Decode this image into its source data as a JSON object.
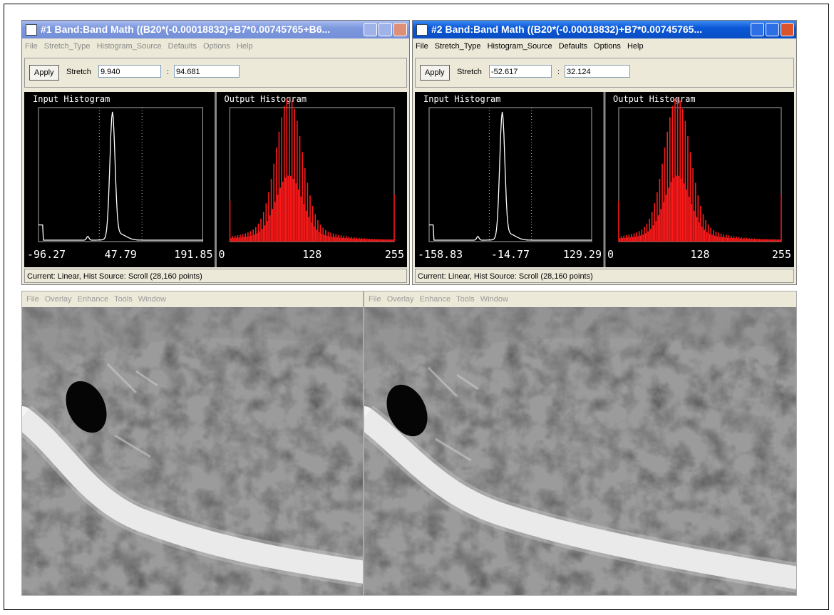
{
  "windows": [
    {
      "title": "#1 Band:Band Math ((B20*(-0.00018832)+B7*0.00745765+B6...",
      "menu": [
        "File",
        "Stretch_Type",
        "Histogram_Source",
        "Defaults",
        "Options",
        "Help"
      ],
      "apply": "Apply",
      "stretch_label": "Stretch",
      "stretch_min": "9.940",
      "colon": ":",
      "stretch_max": "94.681",
      "input_histogram": {
        "title": "Input Histogram",
        "axis_labels": [
          "-96.27",
          "47.79",
          "191.85"
        ]
      },
      "output_histogram": {
        "title": "Output Histogram",
        "axis_labels": [
          "0",
          "128",
          "255"
        ]
      },
      "status": "Current: Linear, Hist Source: Scroll (28,160 points)"
    },
    {
      "title": "#2 Band:Band Math ((B20*(-0.00018832)+B7*0.00745765...",
      "menu": [
        "File",
        "Stretch_Type",
        "Histogram_Source",
        "Defaults",
        "Options",
        "Help"
      ],
      "apply": "Apply",
      "stretch_label": "Stretch",
      "stretch_min": "-52.617",
      "colon": ":",
      "stretch_max": "32.124",
      "input_histogram": {
        "title": "Input Histogram",
        "axis_labels": [
          "-158.83",
          "-14.77",
          "129.29"
        ]
      },
      "output_histogram": {
        "title": "Output Histogram",
        "axis_labels": [
          "0",
          "128",
          "255"
        ]
      },
      "status": "Current: Linear, Hist Source: Scroll (28,160 points)"
    }
  ],
  "image_windows": [
    {
      "menu": [
        "File",
        "Overlay",
        "Enhance",
        "Tools",
        "Window"
      ]
    },
    {
      "menu": [
        "File",
        "Overlay",
        "Enhance",
        "Tools",
        "Window"
      ]
    }
  ]
}
